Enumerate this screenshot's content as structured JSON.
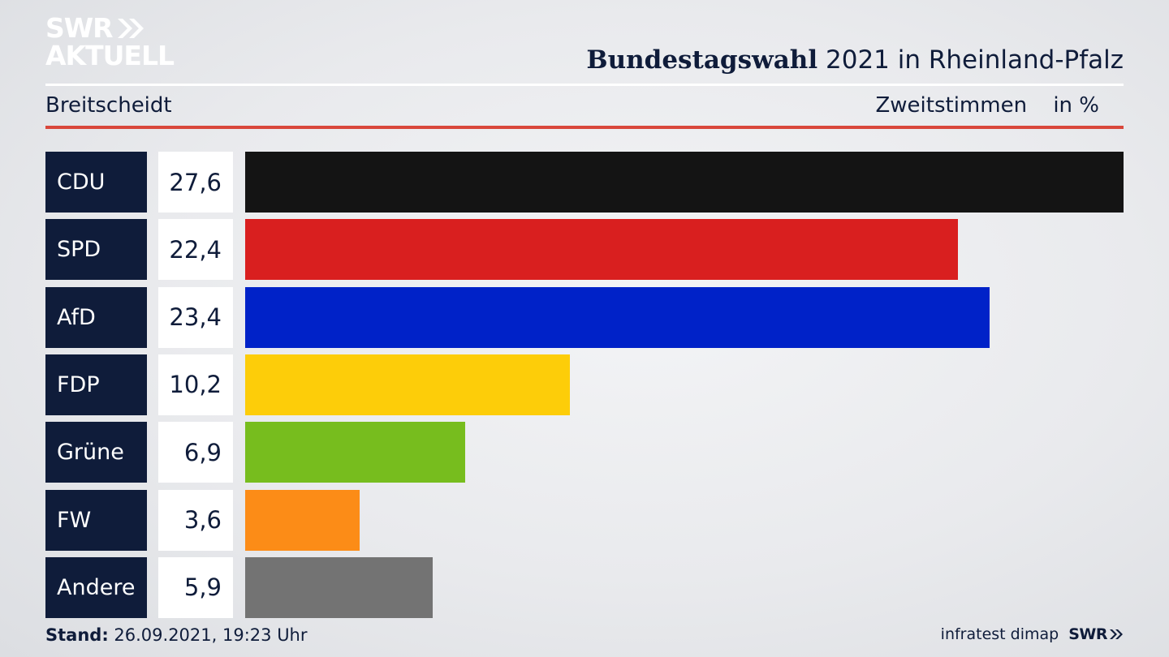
{
  "brand": {
    "logo_line1": "SWR",
    "logo_line2": "AKTUELL",
    "logo_color": "#ffffff"
  },
  "header": {
    "title_bold": "Bundestagswahl",
    "title_rest": "2021 in Rheinland-Pfalz",
    "region": "Breitscheidt",
    "measure": "Zweitstimmen",
    "unit": "in %"
  },
  "chart_data": {
    "type": "bar",
    "orientation": "horizontal",
    "categories": [
      "CDU",
      "SPD",
      "AfD",
      "FDP",
      "Grüne",
      "FW",
      "Andere"
    ],
    "values": [
      27.6,
      22.4,
      23.4,
      10.2,
      6.9,
      3.6,
      5.9
    ],
    "value_labels": [
      "27,6",
      "22,4",
      "23,4",
      "10,2",
      "6,9",
      "3,6",
      "5,9"
    ],
    "colors": [
      "#141414",
      "#d91f1f",
      "#0022c8",
      "#fdcd09",
      "#77bd1e",
      "#fc8c17",
      "#737373"
    ],
    "xlim": [
      0,
      27.6
    ],
    "grid": false
  },
  "footer": {
    "stand_label": "Stand:",
    "stand_value": "26.09.2021, 19:23 Uhr",
    "source": "infratest dimap",
    "logo_small": "SWR"
  }
}
